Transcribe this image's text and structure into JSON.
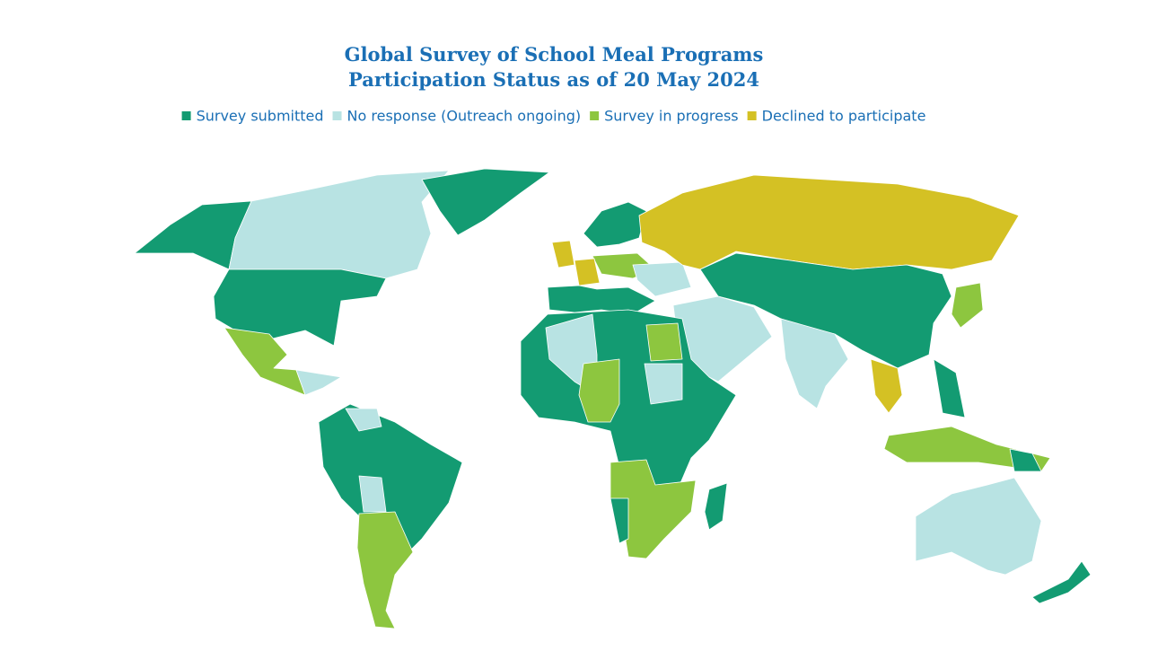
{
  "title": "Global Survey of School Meal Programs",
  "subtitle": "Participation Status as of 20 May 2024",
  "legend": [
    {
      "label": "Survey submitted",
      "color": "#139b72"
    },
    {
      "label": "No response (Outreach ongoing)",
      "color": "#b8e3e3"
    },
    {
      "label": "Survey in progress",
      "color": "#8dc63f"
    },
    {
      "label": "Declined to participate",
      "color": "#d4c124"
    }
  ]
}
